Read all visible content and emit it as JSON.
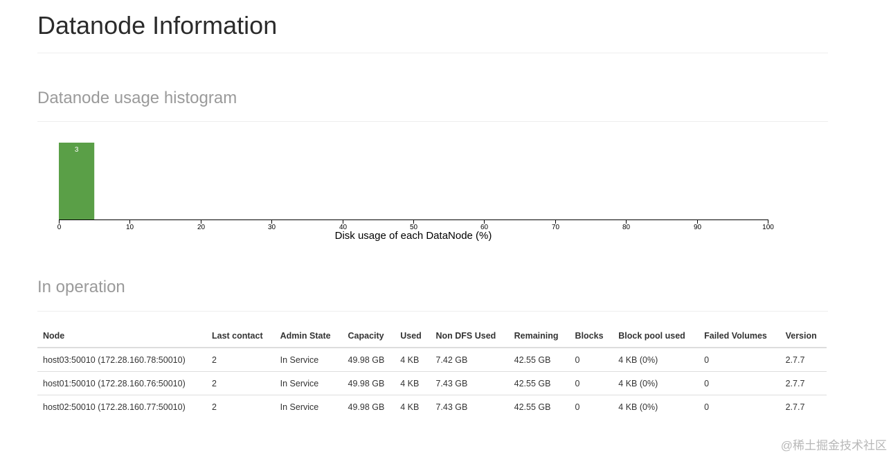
{
  "page": {
    "title": "Datanode Information"
  },
  "histogram_section": {
    "title": "Datanode usage histogram"
  },
  "chart_data": {
    "type": "bar",
    "bins": [
      {
        "range": [
          0,
          5
        ],
        "count": 3
      }
    ],
    "x_ticks": [
      "0",
      "10",
      "20",
      "30",
      "40",
      "50",
      "60",
      "70",
      "80",
      "90",
      "100"
    ],
    "xlabel": "Disk usage of each DataNode (%)",
    "xlim": [
      0,
      100
    ],
    "bar_color": "#5a9f47"
  },
  "operation_section": {
    "title": "In operation",
    "columns": [
      "Node",
      "Last contact",
      "Admin State",
      "Capacity",
      "Used",
      "Non DFS Used",
      "Remaining",
      "Blocks",
      "Block pool used",
      "Failed Volumes",
      "Version"
    ],
    "rows": [
      [
        "host03:50010 (172.28.160.78:50010)",
        "2",
        "In Service",
        "49.98 GB",
        "4 KB",
        "7.42 GB",
        "42.55 GB",
        "0",
        "4 KB (0%)",
        "0",
        "2.7.7"
      ],
      [
        "host01:50010 (172.28.160.76:50010)",
        "2",
        "In Service",
        "49.98 GB",
        "4 KB",
        "7.43 GB",
        "42.55 GB",
        "0",
        "4 KB (0%)",
        "0",
        "2.7.7"
      ],
      [
        "host02:50010 (172.28.160.77:50010)",
        "2",
        "In Service",
        "49.98 GB",
        "4 KB",
        "7.43 GB",
        "42.55 GB",
        "0",
        "4 KB (0%)",
        "0",
        "2.7.7"
      ]
    ]
  },
  "watermark": "@稀土掘金技术社区"
}
